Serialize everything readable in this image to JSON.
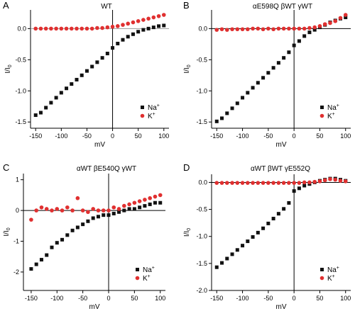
{
  "chart_data": [
    {
      "panel": "A",
      "type": "scatter",
      "title": "WT",
      "xlabel": "mV",
      "ylabel": "I/I",
      "ylabel_sub": "0",
      "xlim": [
        -160,
        110
      ],
      "ylim": [
        -1.6,
        0.3
      ],
      "xticks": [
        -150,
        -100,
        -50,
        0,
        50,
        100
      ],
      "yticks": [
        -1.5,
        -1.0,
        -0.5,
        0.0
      ],
      "ytick_labels": [
        "-1.5",
        "-1.0",
        "-0.5",
        "0.0"
      ],
      "legend_position": "bottom-right",
      "series": [
        {
          "name": "Na",
          "name_sup": "+",
          "marker": "square",
          "color": "#111111",
          "x": [
            -150,
            -140,
            -130,
            -120,
            -110,
            -100,
            -90,
            -80,
            -70,
            -60,
            -50,
            -40,
            -30,
            -20,
            -10,
            0,
            10,
            20,
            30,
            40,
            50,
            60,
            70,
            80,
            90,
            100
          ],
          "y": [
            -1.39,
            -1.35,
            -1.27,
            -1.19,
            -1.11,
            -1.03,
            -0.96,
            -0.89,
            -0.82,
            -0.75,
            -0.68,
            -0.61,
            -0.54,
            -0.47,
            -0.4,
            -0.31,
            -0.24,
            -0.18,
            -0.13,
            -0.09,
            -0.05,
            -0.02,
            0.0,
            0.02,
            0.04,
            0.05
          ]
        },
        {
          "name": "K",
          "name_sup": "+",
          "marker": "circle",
          "color": "#e03030",
          "x": [
            -150,
            -140,
            -130,
            -120,
            -110,
            -100,
            -90,
            -80,
            -70,
            -60,
            -50,
            -40,
            -30,
            -20,
            -10,
            0,
            10,
            20,
            30,
            40,
            50,
            60,
            70,
            80,
            90,
            100
          ],
          "y": [
            0.0,
            0.0,
            0.0,
            0.0,
            0.0,
            0.0,
            0.0,
            0.0,
            0.0,
            0.0,
            0.0,
            0.0,
            0.01,
            0.01,
            0.02,
            0.03,
            0.04,
            0.06,
            0.08,
            0.1,
            0.12,
            0.14,
            0.16,
            0.18,
            0.2,
            0.22
          ]
        }
      ]
    },
    {
      "panel": "B",
      "type": "scatter",
      "title": "αE598Q βWT γWT",
      "xlabel": "mV",
      "ylabel": "I/I",
      "ylabel_sub": "0",
      "xlim": [
        -160,
        110
      ],
      "ylim": [
        -1.6,
        0.3
      ],
      "xticks": [
        -150,
        -100,
        -50,
        0,
        50,
        100
      ],
      "yticks": [
        -1.5,
        -1.0,
        -0.5,
        0.0
      ],
      "ytick_labels": [
        "-1.5",
        "-1.0",
        "-0.5",
        "0.0"
      ],
      "legend_position": "bottom-right",
      "series": [
        {
          "name": "Na",
          "name_sup": "+",
          "marker": "square",
          "color": "#111111",
          "x": [
            -150,
            -140,
            -130,
            -120,
            -110,
            -100,
            -90,
            -80,
            -70,
            -60,
            -50,
            -40,
            -30,
            -20,
            -10,
            0,
            10,
            20,
            30,
            40,
            50,
            60,
            70,
            80,
            90,
            100
          ],
          "y": [
            -1.49,
            -1.44,
            -1.36,
            -1.28,
            -1.2,
            -1.11,
            -1.03,
            -0.95,
            -0.87,
            -0.79,
            -0.71,
            -0.63,
            -0.55,
            -0.47,
            -0.38,
            -0.27,
            -0.2,
            -0.12,
            -0.06,
            -0.02,
            0.02,
            0.06,
            0.1,
            0.13,
            0.16,
            0.18
          ]
        },
        {
          "name": "K",
          "name_sup": "+",
          "marker": "circle",
          "color": "#e03030",
          "x": [
            -150,
            -140,
            -130,
            -120,
            -110,
            -100,
            -90,
            -80,
            -70,
            -60,
            -50,
            -40,
            -30,
            -20,
            -10,
            0,
            10,
            20,
            30,
            40,
            50,
            60,
            70,
            80,
            90,
            100
          ],
          "y": [
            -0.02,
            -0.01,
            -0.02,
            -0.01,
            -0.01,
            -0.01,
            -0.01,
            0.0,
            0.0,
            -0.01,
            0.0,
            -0.01,
            0.0,
            0.0,
            0.0,
            0.0,
            0.0,
            0.0,
            0.01,
            0.02,
            0.04,
            0.07,
            0.09,
            0.12,
            0.17,
            0.22
          ]
        }
      ]
    },
    {
      "panel": "C",
      "type": "scatter",
      "title": "αWT βE540Q γWT",
      "xlabel": "mV",
      "ylabel": "I/I",
      "ylabel_sub": "0",
      "xlim": [
        -165,
        110
      ],
      "ylim": [
        -2.6,
        1.2
      ],
      "xticks": [
        -150,
        -100,
        -50,
        0,
        50,
        100
      ],
      "yticks": [
        -2,
        -1,
        0,
        1
      ],
      "ytick_labels": [
        "-2",
        "-1",
        "0",
        "1"
      ],
      "legend_position": "bottom-right",
      "series": [
        {
          "name": "Na",
          "name_sup": "+",
          "marker": "square",
          "color": "#111111",
          "x": [
            -150,
            -140,
            -130,
            -120,
            -110,
            -100,
            -90,
            -80,
            -70,
            -60,
            -50,
            -40,
            -30,
            -20,
            -10,
            0,
            10,
            20,
            30,
            40,
            50,
            60,
            70,
            80,
            90,
            100
          ],
          "y": [
            -1.9,
            -1.75,
            -1.6,
            -1.45,
            -1.2,
            -1.05,
            -0.95,
            -0.8,
            -0.65,
            -0.55,
            -0.45,
            -0.35,
            -0.25,
            -0.2,
            -0.15,
            -0.15,
            -0.1,
            -0.05,
            0.0,
            0.05,
            0.05,
            0.1,
            0.15,
            0.2,
            0.25,
            0.25
          ]
        },
        {
          "name": "K",
          "name_sup": "+",
          "marker": "circle",
          "color": "#e03030",
          "x": [
            -150,
            -140,
            -130,
            -120,
            -110,
            -100,
            -90,
            -80,
            -70,
            -60,
            -50,
            -40,
            -30,
            -20,
            -10,
            0,
            10,
            20,
            30,
            40,
            50,
            60,
            70,
            80,
            90,
            100
          ],
          "y": [
            -0.3,
            0.0,
            0.1,
            0.05,
            0.0,
            0.05,
            0.0,
            0.1,
            0.0,
            0.4,
            0.0,
            -0.05,
            0.05,
            0.0,
            0.0,
            0.0,
            0.1,
            0.05,
            0.15,
            0.2,
            0.25,
            0.3,
            0.35,
            0.4,
            0.45,
            0.5
          ]
        }
      ]
    },
    {
      "panel": "D",
      "type": "scatter",
      "title": "αWT βWT γE552Q",
      "xlabel": "mV",
      "ylabel": "I/I",
      "ylabel_sub": "0",
      "xlim": [
        -160,
        110
      ],
      "ylim": [
        -2.0,
        0.15
      ],
      "xticks": [
        -150,
        -100,
        -50,
        0,
        50,
        100
      ],
      "yticks": [
        -2.0,
        -1.5,
        -1.0,
        -0.5,
        0.0
      ],
      "ytick_labels": [
        "-2.0",
        "-1.5",
        "-1.0",
        "-0.5",
        "0.0"
      ],
      "legend_position": "bottom-right",
      "series": [
        {
          "name": "Na",
          "name_sup": "+",
          "marker": "square",
          "color": "#111111",
          "x": [
            -150,
            -140,
            -130,
            -120,
            -110,
            -100,
            -90,
            -80,
            -70,
            -60,
            -50,
            -40,
            -30,
            -20,
            -10,
            0,
            10,
            20,
            30,
            40,
            50,
            60,
            70,
            80,
            90,
            100
          ],
          "y": [
            -1.57,
            -1.49,
            -1.41,
            -1.33,
            -1.25,
            -1.17,
            -1.09,
            -1.01,
            -0.93,
            -0.85,
            -0.76,
            -0.67,
            -0.58,
            -0.49,
            -0.38,
            -0.16,
            -0.11,
            -0.06,
            -0.03,
            0.0,
            0.03,
            0.05,
            0.07,
            0.07,
            0.05,
            0.03
          ]
        },
        {
          "name": "K",
          "name_sup": "+",
          "marker": "circle",
          "color": "#e03030",
          "x": [
            -150,
            -140,
            -130,
            -120,
            -110,
            -100,
            -90,
            -80,
            -70,
            -60,
            -50,
            -40,
            -30,
            -20,
            -10,
            0,
            10,
            20,
            30,
            40,
            50,
            60,
            70,
            80,
            90,
            100
          ],
          "y": [
            -0.01,
            -0.01,
            -0.01,
            -0.01,
            -0.01,
            -0.01,
            -0.01,
            -0.01,
            -0.01,
            -0.01,
            -0.01,
            -0.01,
            -0.01,
            -0.01,
            -0.01,
            -0.01,
            -0.01,
            0.0,
            0.0,
            0.01,
            0.02,
            0.04,
            0.06,
            0.05,
            0.03,
            0.02
          ]
        }
      ]
    }
  ]
}
